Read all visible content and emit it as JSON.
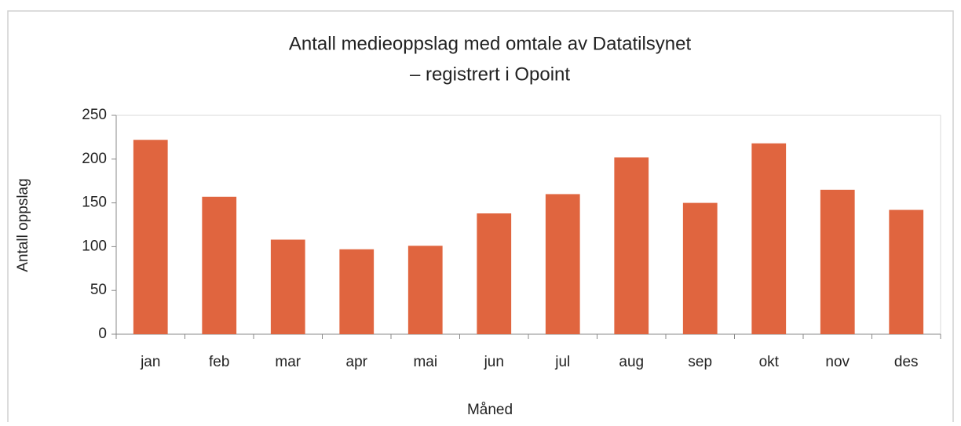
{
  "chart_data": {
    "type": "bar",
    "title": [
      "Antall medieoppslag med omtale av Datatilsynet",
      "– registrert i Opoint"
    ],
    "xlabel": "Måned",
    "ylabel": "Antall oppslag",
    "categories": [
      "jan",
      "feb",
      "mar",
      "apr",
      "mai",
      "jun",
      "jul",
      "aug",
      "sep",
      "okt",
      "nov",
      "des"
    ],
    "values": [
      222,
      157,
      108,
      97,
      101,
      138,
      160,
      202,
      150,
      218,
      165,
      142
    ],
    "color": "#e0653f",
    "ylim": [
      0,
      250
    ],
    "yticks": [
      0,
      50,
      100,
      150,
      200,
      250
    ],
    "grid": false
  }
}
